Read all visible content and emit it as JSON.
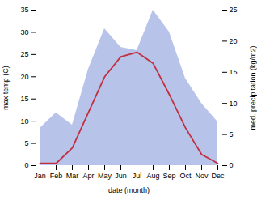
{
  "chart_data": {
    "type": "line",
    "categories": [
      "Jan",
      "Feb",
      "Mar",
      "Apr",
      "May",
      "Jun",
      "Jul",
      "Aug",
      "Sep",
      "Oct",
      "Nov",
      "Dec"
    ],
    "series": [
      {
        "type": "area",
        "axis": "y2",
        "color": "#b0bce8",
        "values": [
          6.0,
          8.5,
          6.5,
          15.5,
          22.0,
          19.0,
          18.5,
          25.0,
          21.5,
          14.0,
          10.0,
          7.0
        ]
      },
      {
        "type": "line",
        "color": "#c03040",
        "values": [
          0.5,
          0.5,
          4.0,
          12.0,
          20.0,
          24.5,
          25.5,
          23.0,
          16.0,
          8.5,
          2.5,
          0.5
        ]
      }
    ],
    "xlabel": "date (month)",
    "ylabel": "max temp (C)",
    "y2label": "med. precipitation (kg/m2)",
    "ylim": [
      0,
      35
    ],
    "yticks": [
      0,
      5,
      10,
      15,
      20,
      25,
      30,
      35
    ],
    "y2lim": [
      0,
      25
    ],
    "y2ticks": [
      0,
      5,
      10,
      15,
      20,
      25
    ]
  }
}
